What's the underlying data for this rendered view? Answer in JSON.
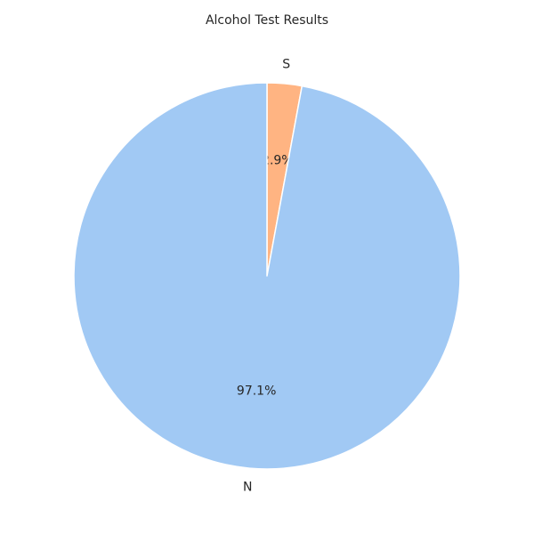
{
  "chart_data": {
    "type": "pie",
    "title": "Alcohol Test Results",
    "slices": [
      {
        "label": "S",
        "value": 2.9,
        "pct_label": "2.9%",
        "color": "#ffb482"
      },
      {
        "label": "N",
        "value": 97.1,
        "pct_label": "97.1%",
        "color": "#a1c9f4"
      }
    ],
    "start_angle_deg": 90,
    "direction": "clockwise",
    "slice_edge_color": "#ffffff"
  }
}
